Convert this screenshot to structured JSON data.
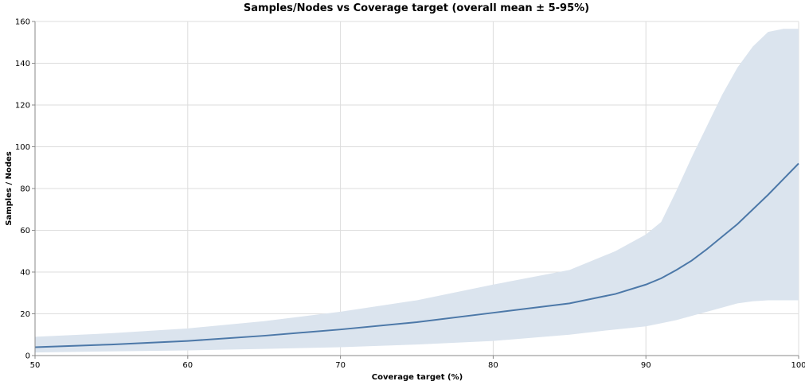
{
  "chart_data": {
    "type": "line",
    "title": "Samples/Nodes vs Coverage target (overall mean ± 5-95%)",
    "x_label": "Coverage target (%)",
    "y_label": "Samples / Nodes",
    "x": [
      50,
      55,
      60,
      65,
      70,
      75,
      80,
      85,
      88,
      90,
      91,
      92,
      93,
      94,
      95,
      96,
      97,
      98,
      99,
      100
    ],
    "series": [
      {
        "color": "#4c78a8",
        "values": [
          4,
          5.3,
          7,
          9.5,
          12.5,
          16,
          20.5,
          25,
          29.5,
          34,
          37,
          41,
          45.5,
          51,
          57,
          63,
          70,
          77,
          84.5,
          92
        ]
      }
    ],
    "band": {
      "color": "#dbe4ee",
      "lower": [
        1.5,
        2,
        2.5,
        3.2,
        4,
        5.3,
        7,
        10,
        12.5,
        14,
        15.5,
        17,
        19,
        21,
        23,
        25,
        26,
        26.5,
        26.5,
        26.5
      ],
      "upper": [
        9,
        10.7,
        13,
        16.5,
        21,
        26.5,
        34,
        41,
        50,
        58,
        64,
        79,
        95,
        110,
        125,
        138,
        148,
        155,
        156.5,
        156.5
      ]
    },
    "xlim": [
      50,
      100
    ],
    "xticks": [
      50,
      60,
      70,
      80,
      90,
      100
    ],
    "ylim": [
      0,
      160
    ],
    "yticks": [
      0,
      20,
      40,
      60,
      80,
      100,
      120,
      140,
      160
    ],
    "grid": true
  }
}
